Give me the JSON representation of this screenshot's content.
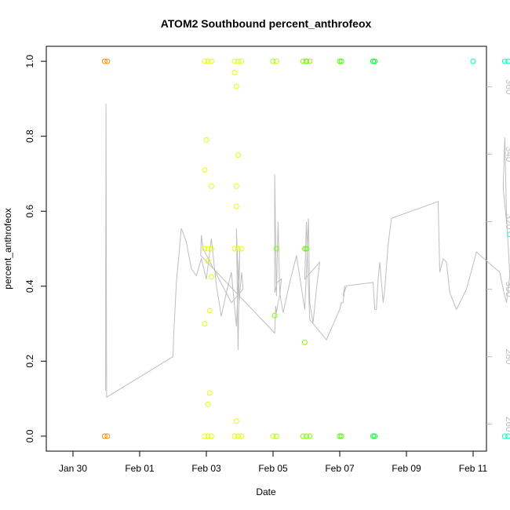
{
  "chart_data": {
    "type": "scatter",
    "title": "ATOM2 Southbound percent_anthrofeox",
    "xlabel": "Date",
    "ylabel": "percent_anthrofeox",
    "x_axis": {
      "type": "date",
      "range_days": [
        -2.8,
        10.4
      ],
      "ticks": [
        {
          "label": "Jan 30",
          "day": -2
        },
        {
          "label": "Feb 01",
          "day": 0
        },
        {
          "label": "Feb 03",
          "day": 2
        },
        {
          "label": "Feb 05",
          "day": 4
        },
        {
          "label": "Feb 07",
          "day": 6
        },
        {
          "label": "Feb 09",
          "day": 8
        },
        {
          "label": "Feb 11",
          "day": 10
        }
      ]
    },
    "y_axis": {
      "range": [
        -0.04,
        1.04
      ],
      "ticks": [
        {
          "label": "0.0",
          "value": 0.0
        },
        {
          "label": "0.2",
          "value": 0.2
        },
        {
          "label": "0.4",
          "value": 0.4
        },
        {
          "label": "0.6",
          "value": 0.6
        },
        {
          "label": "0.8",
          "value": 0.8
        },
        {
          "label": "1.0",
          "value": 1.0
        }
      ]
    },
    "y2_axis": {
      "range": [
        252,
        372
      ],
      "color": "#bebebe",
      "ticks": [
        {
          "label": "260",
          "value": 260
        },
        {
          "label": "280",
          "value": 280
        },
        {
          "label": "300",
          "value": 300
        },
        {
          "label": "320",
          "value": 320
        },
        {
          "label": "340",
          "value": 340
        },
        {
          "label": "360",
          "value": 360
        }
      ]
    },
    "points": [
      {
        "x": -1.05,
        "y": 1.0,
        "color": "#ff8c00"
      },
      {
        "x": -0.97,
        "y": 1.0,
        "color": "#ff8c00"
      },
      {
        "x": -1.05,
        "y": 0.0,
        "color": "#ff8c00"
      },
      {
        "x": -0.97,
        "y": 0.0,
        "color": "#ff8c00"
      },
      {
        "x": 1.95,
        "y": 1.0,
        "color": "#e6ff00"
      },
      {
        "x": 2.05,
        "y": 1.0,
        "color": "#e6ff00"
      },
      {
        "x": 2.15,
        "y": 1.0,
        "color": "#e6ff00"
      },
      {
        "x": 1.95,
        "y": 0.0,
        "color": "#e6ff00"
      },
      {
        "x": 2.05,
        "y": 0.0,
        "color": "#e6ff00"
      },
      {
        "x": 2.15,
        "y": 0.0,
        "color": "#e6ff00"
      },
      {
        "x": 2.0,
        "y": 0.79,
        "color": "#e6ff00"
      },
      {
        "x": 1.95,
        "y": 0.71,
        "color": "#e6ff00"
      },
      {
        "x": 2.15,
        "y": 0.667,
        "color": "#e6ff00"
      },
      {
        "x": 1.95,
        "y": 0.5,
        "color": "#e6ff00"
      },
      {
        "x": 2.05,
        "y": 0.5,
        "color": "#e6ff00"
      },
      {
        "x": 2.15,
        "y": 0.5,
        "color": "#e6ff00"
      },
      {
        "x": 2.05,
        "y": 0.467,
        "color": "#e6ff00"
      },
      {
        "x": 2.15,
        "y": 0.425,
        "color": "#e6ff00"
      },
      {
        "x": 2.1,
        "y": 0.335,
        "color": "#e6ff00"
      },
      {
        "x": 1.95,
        "y": 0.3,
        "color": "#e6ff00"
      },
      {
        "x": 2.1,
        "y": 0.115,
        "color": "#e6ff00"
      },
      {
        "x": 2.05,
        "y": 0.085,
        "color": "#e6ff00"
      },
      {
        "x": 2.85,
        "y": 1.0,
        "color": "#e6ff00"
      },
      {
        "x": 2.95,
        "y": 1.0,
        "color": "#e6ff00"
      },
      {
        "x": 3.05,
        "y": 1.0,
        "color": "#e6ff00"
      },
      {
        "x": 2.85,
        "y": 0.0,
        "color": "#e6ff00"
      },
      {
        "x": 2.95,
        "y": 0.0,
        "color": "#e6ff00"
      },
      {
        "x": 3.05,
        "y": 0.0,
        "color": "#e6ff00"
      },
      {
        "x": 2.85,
        "y": 0.97,
        "color": "#e6ff00"
      },
      {
        "x": 2.9,
        "y": 0.933,
        "color": "#e6ff00"
      },
      {
        "x": 2.95,
        "y": 0.75,
        "color": "#e6ff00"
      },
      {
        "x": 2.9,
        "y": 0.667,
        "color": "#e6ff00"
      },
      {
        "x": 2.9,
        "y": 0.613,
        "color": "#e6ff00"
      },
      {
        "x": 2.85,
        "y": 0.5,
        "color": "#e6ff00"
      },
      {
        "x": 2.95,
        "y": 0.5,
        "color": "#e6ff00"
      },
      {
        "x": 3.05,
        "y": 0.5,
        "color": "#e6ff00"
      },
      {
        "x": 2.9,
        "y": 0.04,
        "color": "#e6ff00"
      },
      {
        "x": 4.0,
        "y": 1.0,
        "color": "#b3ff00"
      },
      {
        "x": 4.1,
        "y": 1.0,
        "color": "#b3ff00"
      },
      {
        "x": 4.0,
        "y": 0.0,
        "color": "#b3ff00"
      },
      {
        "x": 4.1,
        "y": 0.0,
        "color": "#b3ff00"
      },
      {
        "x": 4.1,
        "y": 0.5,
        "color": "#80ff00"
      },
      {
        "x": 4.05,
        "y": 0.322,
        "color": "#80ff00"
      },
      {
        "x": 4.9,
        "y": 1.0,
        "color": "#80ff00"
      },
      {
        "x": 5.0,
        "y": 1.0,
        "color": "#80ff00"
      },
      {
        "x": 5.1,
        "y": 1.0,
        "color": "#80ff00"
      },
      {
        "x": 4.9,
        "y": 0.0,
        "color": "#80ff00"
      },
      {
        "x": 5.0,
        "y": 0.0,
        "color": "#80ff00"
      },
      {
        "x": 5.1,
        "y": 0.0,
        "color": "#80ff00"
      },
      {
        "x": 4.95,
        "y": 0.5,
        "color": "#80ff00"
      },
      {
        "x": 4.95,
        "y": 0.25,
        "color": "#80ff00"
      },
      {
        "x": 5.0,
        "y": 1.0,
        "color": "#4dff00"
      },
      {
        "x": 6.0,
        "y": 1.0,
        "color": "#4dff00"
      },
      {
        "x": 6.05,
        "y": 1.0,
        "color": "#4dff00"
      },
      {
        "x": 6.0,
        "y": 0.0,
        "color": "#4dff00"
      },
      {
        "x": 6.05,
        "y": 0.0,
        "color": "#4dff00"
      },
      {
        "x": 5.0,
        "y": 0.5,
        "color": "#4dff00"
      },
      {
        "x": 7.0,
        "y": 1.0,
        "color": "#00ff33"
      },
      {
        "x": 7.05,
        "y": 1.0,
        "color": "#00ff33"
      },
      {
        "x": 7.0,
        "y": 0.0,
        "color": "#00ff33"
      },
      {
        "x": 7.05,
        "y": 0.0,
        "color": "#00ff33"
      },
      {
        "x": 10.0,
        "y": 1.0,
        "color": "#00ffc0"
      },
      {
        "x": 10.95,
        "y": 1.0,
        "color": "#00ffc0"
      },
      {
        "x": 11.05,
        "y": 1.0,
        "color": "#00ffc0"
      },
      {
        "x": 10.95,
        "y": 0.0,
        "color": "#00ffc0"
      },
      {
        "x": 11.05,
        "y": 0.0,
        "color": "#00ffc0"
      },
      {
        "x": 11.1,
        "y": 0.538,
        "color": "#00ffc0"
      }
    ],
    "line_series": {
      "color": "#bebebe",
      "axis": "y2",
      "x": [
        -1.02,
        -1.01,
        -0.99,
        1.0,
        1.02,
        1.1,
        1.25,
        1.4,
        1.55,
        1.7,
        1.85,
        2.0,
        2.15,
        2.3,
        2.45,
        2.6,
        2.75,
        2.9,
        3.0,
        2.95,
        2.9,
        2.98,
        3.06,
        3.1,
        2.75,
        1.9,
        1.85,
        1.83,
        4.05,
        4.08,
        4.1,
        4.15,
        4.2,
        4.25,
        4.12,
        4.05,
        4.05,
        4.1,
        4.15,
        4.2,
        4.3,
        4.5,
        4.7,
        4.95,
        5.0,
        5.02,
        5.06,
        5.1,
        5.2,
        5.3,
        5.4,
        4.95,
        5.0,
        5.05,
        5.1,
        5.6,
        6.0,
        6.05,
        6.1,
        6.15,
        6.1,
        6.2,
        7.0,
        7.05,
        7.1,
        7.15,
        7.2,
        7.3,
        7.35,
        7.45,
        7.55,
        8.95,
        9.0,
        9.1,
        9.2,
        9.3,
        9.5,
        9.8,
        10.1,
        10.8,
        10.9,
        11.0,
        11.1,
        11.0,
        10.95,
        10.9,
        11.0
      ],
      "y": [
        270,
        355,
        268,
        280,
        286,
        302,
        318,
        314,
        306,
        304,
        309,
        303,
        315,
        301,
        292,
        299,
        305,
        289,
        312,
        282,
        318,
        296,
        305,
        300,
        296,
        312,
        316,
        310,
        287,
        295,
        293,
        296,
        298,
        303,
        302,
        299,
        334,
        298,
        320,
        299,
        293,
        302,
        310,
        294,
        305,
        310,
        321,
        296,
        290,
        300,
        308,
        303,
        320,
        304,
        291,
        285,
        294,
        296,
        296,
        301,
        298,
        301,
        302,
        294,
        294,
        303,
        308,
        296,
        300,
        313,
        321,
        326,
        305,
        309,
        308,
        299,
        294,
        300,
        311,
        305,
        300,
        296,
        304,
        322,
        345,
        330,
        320
      ]
    },
    "grid": false,
    "legend": "none"
  }
}
